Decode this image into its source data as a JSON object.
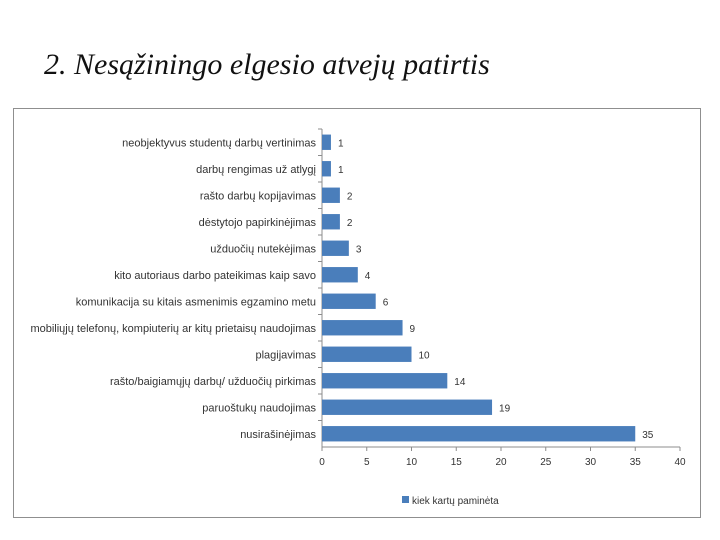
{
  "slide": {
    "title": "2. Nesąžiningo elgesio atvejų patirtis"
  },
  "chart_data": {
    "type": "bar",
    "orientation": "horizontal",
    "categories": [
      "neobjektyvus studentų darbų vertinimas",
      "darbų rengimas už atlygį",
      "rašto darbų kopijavimas",
      "dėstytojo papirkinėjimas",
      "užduočių nutekėjimas",
      "kito autoriaus darbo pateikimas kaip savo",
      "komunikacija su kitais asmenimis egzamino metu",
      "mobiliųjų telefonų, kompiuterių ar kitų prietaisų naudojimas",
      "plagijavimas",
      "rašto/baigiamųjų darbų/ užduočių pirkimas",
      "paruoštukų naudojimas",
      "nusirašinėjimas"
    ],
    "series": [
      {
        "name": "kiek kartų paminėta",
        "values": [
          1,
          1,
          2,
          2,
          3,
          4,
          6,
          9,
          10,
          14,
          19,
          35
        ],
        "color": "#4a7ebb"
      }
    ],
    "xlim": [
      0,
      40
    ],
    "xticks": [
      0,
      5,
      10,
      15,
      20,
      25,
      30,
      35,
      40
    ],
    "xtick_labels": [
      "0",
      "5",
      "10",
      "15",
      "20",
      "25",
      "30",
      "35",
      "40"
    ],
    "grid": false,
    "legend_position": "bottom"
  }
}
